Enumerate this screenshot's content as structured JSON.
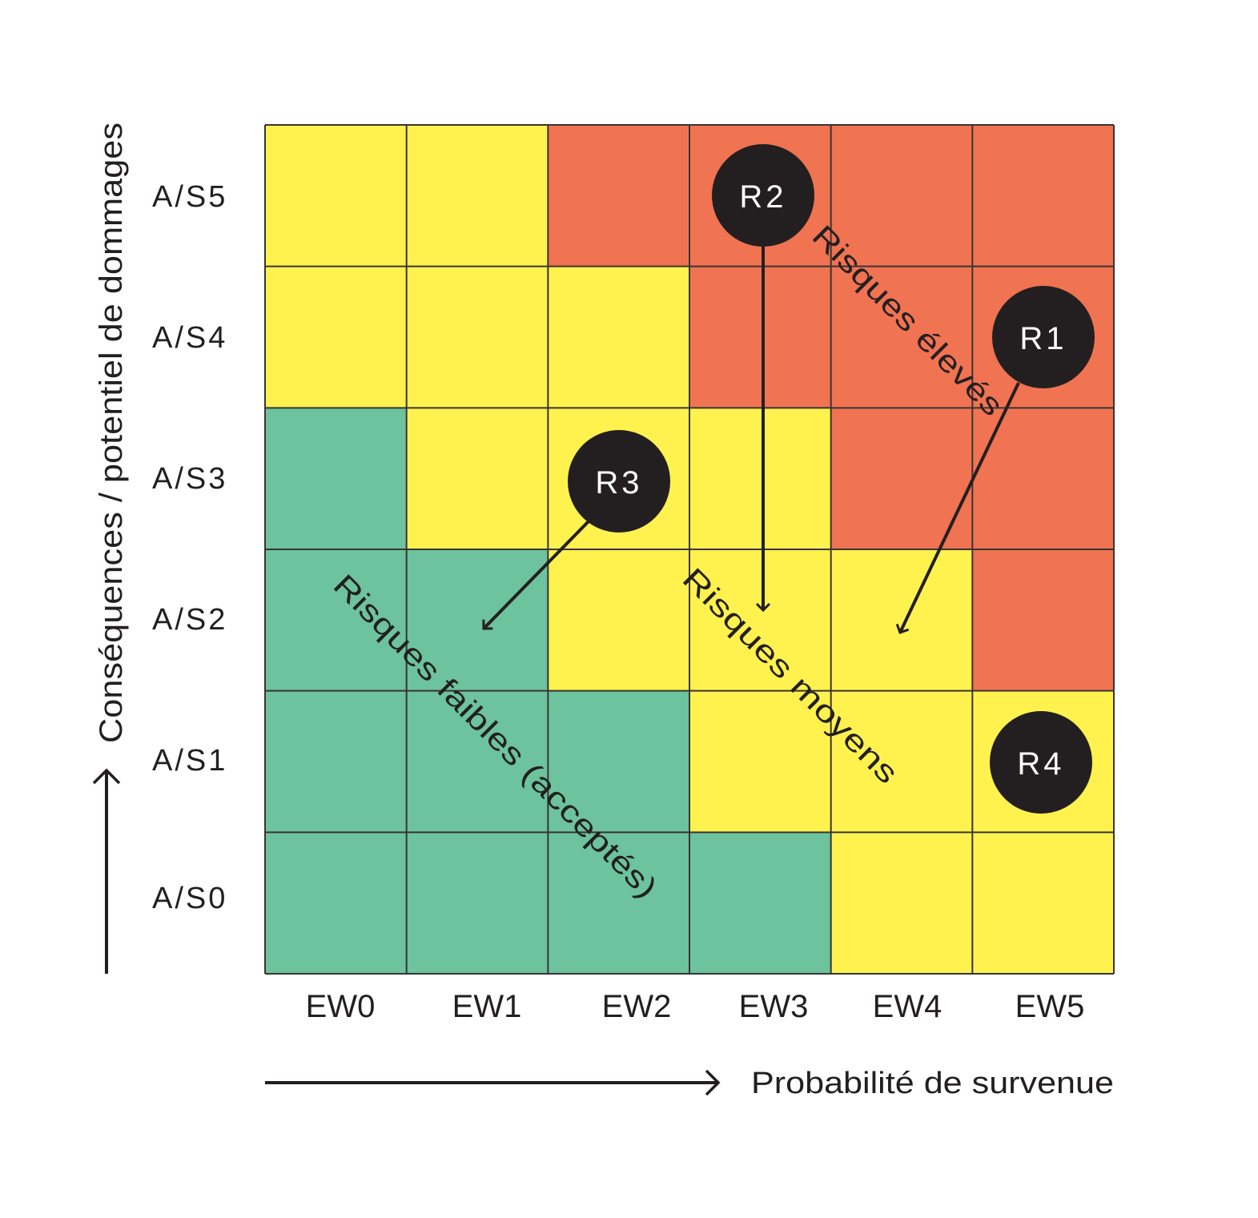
{
  "chart_data": {
    "type": "heatmap",
    "title": "",
    "xlabel": "Probabilité de survenue",
    "ylabel": "Conséquences / potentiel de dommages",
    "x_categories": [
      "EW0",
      "EW1",
      "EW2",
      "EW3",
      "EW4",
      "EW5"
    ],
    "y_categories_top_to_bottom": [
      "A/S5",
      "A/S4",
      "A/S3",
      "A/S2",
      "A/S1",
      "A/S0"
    ],
    "cell_levels_top_to_bottom": [
      [
        "medium",
        "medium",
        "high",
        "high",
        "high",
        "high"
      ],
      [
        "medium",
        "medium",
        "medium",
        "high",
        "high",
        "high"
      ],
      [
        "low",
        "medium",
        "medium",
        "medium",
        "high",
        "high"
      ],
      [
        "low",
        "low",
        "medium",
        "medium",
        "medium",
        "high"
      ],
      [
        "low",
        "low",
        "low",
        "medium",
        "medium",
        "medium"
      ],
      [
        "low",
        "low",
        "low",
        "low",
        "medium",
        "medium"
      ]
    ],
    "level_colors": {
      "low": "#6cc39d",
      "medium": "#fff24f",
      "high": "#f07352"
    },
    "zone_labels": [
      {
        "level": "high",
        "text": "Risques élevés"
      },
      {
        "level": "medium",
        "text": "Risques moyens"
      },
      {
        "level": "low",
        "text": "Risques faibles (acceptés)"
      }
    ],
    "risks": [
      {
        "id": "R1",
        "x": "EW5",
        "y": "A/S4",
        "arrow_to": {
          "x": "EW4",
          "y": "A/S2"
        }
      },
      {
        "id": "R2",
        "x": "EW3",
        "y": "A/S5",
        "arrow_to": {
          "x": "EW3",
          "y": "A/S2"
        }
      },
      {
        "id": "R3",
        "x": "EW2",
        "y": "A/S3",
        "arrow_to": {
          "x": "EW1",
          "y": "A/S2"
        }
      },
      {
        "id": "R4",
        "x": "EW5",
        "y": "A/S1",
        "arrow_to": null
      }
    ]
  },
  "axes": {
    "x_title": "Probabilité de survenue",
    "y_title": "Conséquences / potentiel de dommages",
    "x_ticks": [
      "EW0",
      "EW1",
      "EW2",
      "EW3",
      "EW4",
      "EW5"
    ],
    "y_ticks": [
      "A/S5",
      "A/S4",
      "A/S3",
      "A/S2",
      "A/S1",
      "A/S0"
    ]
  },
  "zones": {
    "high": "Risques élevés",
    "medium": "Risques moyens",
    "low": "Risques faibles (acceptés)"
  },
  "risks": {
    "r1": "R1",
    "r2": "R2",
    "r3": "R3",
    "r4": "R4"
  },
  "colors": {
    "low": "#6cc39d",
    "medium": "#fff24f",
    "high": "#f07352",
    "marker": "#231f20",
    "grid_line": "#3a3433"
  }
}
